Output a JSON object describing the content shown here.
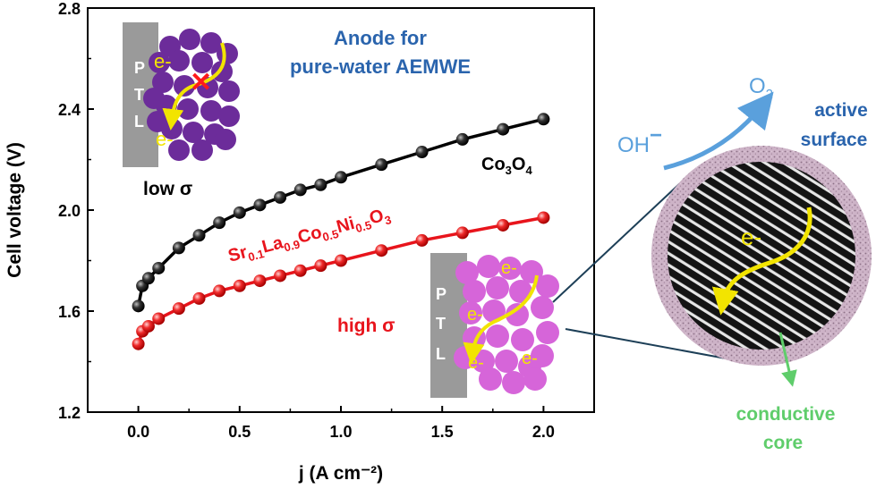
{
  "chart_data": {
    "type": "scatter",
    "title": "Anode for pure-water AEMWE",
    "title_lines": [
      "Anode for",
      "pure-water AEMWE"
    ],
    "xlabel": "j (A cm⁻²)",
    "ylabel": "Cell voltage (V)",
    "xlim": [
      -0.25,
      2.25
    ],
    "ylim": [
      1.2,
      2.8
    ],
    "x_ticks": [
      0.0,
      0.5,
      1.0,
      1.5,
      2.0
    ],
    "x_tick_labels": [
      "0.0",
      "0.5",
      "1.0",
      "1.5",
      "2.0"
    ],
    "y_ticks": [
      1.2,
      1.6,
      2.0,
      2.4,
      2.8
    ],
    "y_tick_labels": [
      "1.2",
      "1.6",
      "2.0",
      "2.4",
      "2.8"
    ],
    "grid": false,
    "series": [
      {
        "name": "Co3O4",
        "color": "#000000",
        "x": [
          0.0,
          0.02,
          0.05,
          0.1,
          0.2,
          0.3,
          0.4,
          0.5,
          0.6,
          0.7,
          0.8,
          0.9,
          1.0,
          1.2,
          1.4,
          1.6,
          1.8,
          2.0
        ],
        "y": [
          1.62,
          1.7,
          1.73,
          1.77,
          1.85,
          1.9,
          1.95,
          1.99,
          2.02,
          2.05,
          2.08,
          2.1,
          2.13,
          2.18,
          2.23,
          2.28,
          2.32,
          2.36
        ]
      },
      {
        "name": "Sr0.1La0.9Co0.5Ni0.5O3",
        "color": "#e8141c",
        "x": [
          0.0,
          0.02,
          0.05,
          0.1,
          0.2,
          0.3,
          0.4,
          0.5,
          0.6,
          0.7,
          0.8,
          0.9,
          1.0,
          1.2,
          1.4,
          1.6,
          1.8,
          2.0
        ],
        "y": [
          1.47,
          1.52,
          1.54,
          1.57,
          1.61,
          1.65,
          1.68,
          1.7,
          1.72,
          1.74,
          1.76,
          1.78,
          1.8,
          1.84,
          1.88,
          1.91,
          1.94,
          1.97
        ]
      }
    ]
  },
  "labels": {
    "co3o4": {
      "main1": "Co",
      "sub1": "3",
      "main2": "O",
      "sub2": "4"
    },
    "srla": {
      "p1": "Sr",
      "s1": "0.1",
      "p2": "La",
      "s2": "0.9",
      "p3": "Co",
      "s3": "0.5",
      "p4": "Ni",
      "s4": "0.5",
      "p5": "O",
      "s5": "3"
    },
    "low_sigma": "low σ",
    "high_sigma": "high σ",
    "ptl_letters": [
      "P",
      "T",
      "L"
    ],
    "electron": "e-",
    "oh": "OH",
    "oh_charge": "−",
    "o2_main": "O",
    "o2_sub": "2",
    "active_surface": [
      "active",
      "surface"
    ],
    "conductive_core": [
      "conductive",
      "core"
    ]
  },
  "colors": {
    "title_blue": "#2a64ad",
    "o2_blue": "#5aa0dc",
    "green": "#5fcd6b",
    "purple_particle": "#6c2c9a",
    "pink_particle": "#d665d9",
    "electron_yellow": "#f2e400",
    "ptl_gray": "#9a9a9a",
    "navy_line": "#1d3f57"
  }
}
